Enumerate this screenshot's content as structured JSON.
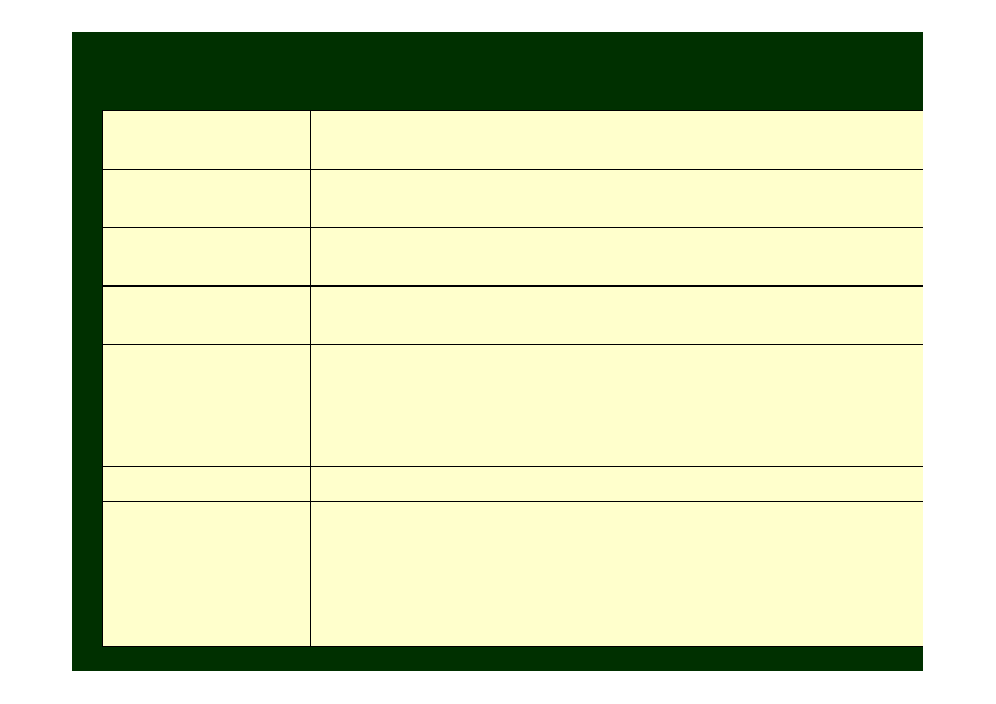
{
  "slide": {
    "title": "",
    "background_color": "#003000",
    "table_fill_color": "#ffffcc",
    "rows": [
      {
        "label": "",
        "content": ""
      },
      {
        "label": "",
        "content": ""
      },
      {
        "label": "",
        "content": ""
      },
      {
        "label": "",
        "content": ""
      },
      {
        "label": "",
        "content": ""
      },
      {
        "label": "",
        "content": ""
      },
      {
        "label": "",
        "content": ""
      }
    ]
  }
}
